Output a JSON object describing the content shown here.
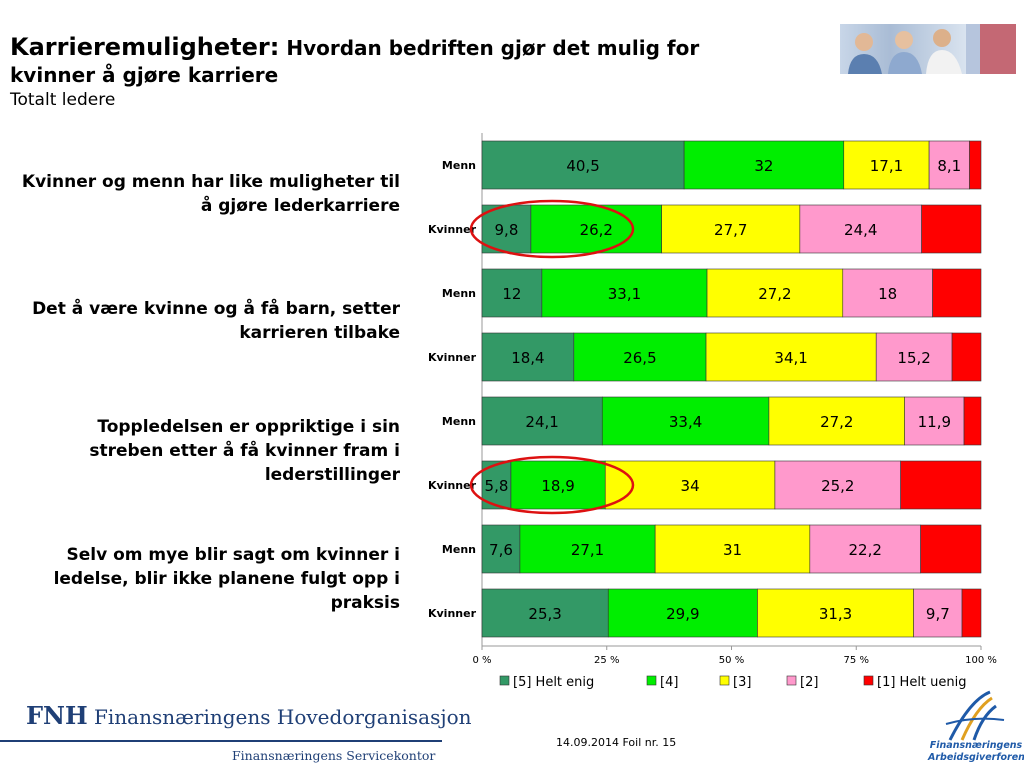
{
  "title": {
    "main": "Karrieremuligheter:",
    "rest": "Hvordan bedriften gjør det mulig for",
    "line2": "kvinner å gjøre karriere",
    "subtitle": "Totalt ledere"
  },
  "statements": [
    "Kvinner og menn har like muligheter til å gjøre lederkarriere",
    "Det å være kvinne og å få barn, setter karrieren tilbake",
    "Toppledelsen er oppriktige i sin streben etter å få kvinner fram i lederstillinger",
    "Selv om mye blir sagt om kvinner i ledelse, blir ikke planene fulgt opp i praksis"
  ],
  "chart_data": {
    "type": "bar",
    "orientation": "horizontal",
    "stacked": true,
    "categories": [
      "Menn",
      "Kvinner",
      "Menn",
      "Kvinner",
      "Menn",
      "Kvinner",
      "Menn",
      "Kvinner"
    ],
    "series": [
      {
        "name": "[5] Helt enig",
        "color": "#339966",
        "values": [
          40.5,
          9.8,
          12,
          18.4,
          24.1,
          5.8,
          7.6,
          25.3
        ],
        "labels": [
          "40,5",
          "9,8",
          "12",
          "18,4",
          "24,1",
          "5,8",
          "7,6",
          "25,3"
        ]
      },
      {
        "name": "[4]",
        "color": "#00ee00",
        "values": [
          32,
          26.2,
          33.1,
          26.5,
          33.4,
          18.9,
          27.1,
          29.9
        ],
        "labels": [
          "32",
          "26,2",
          "33,1",
          "26,5",
          "33,4",
          "18,9",
          "27,1",
          "29,9"
        ]
      },
      {
        "name": "[3]",
        "color": "#ffff00",
        "values": [
          17.1,
          27.7,
          27.2,
          34.1,
          27.2,
          34,
          31,
          31.3
        ],
        "labels": [
          "17,1",
          "27,7",
          "27,2",
          "34,1",
          "27,2",
          "34",
          "31",
          "31,3"
        ]
      },
      {
        "name": "[2]",
        "color": "#ff99cc",
        "values": [
          8.1,
          24.4,
          18,
          15.2,
          11.9,
          25.2,
          22.2,
          9.7
        ],
        "labels": [
          "8,1",
          "24,4",
          "18",
          "15,2",
          "11,9",
          "25,2",
          "22,2",
          "9,7"
        ]
      },
      {
        "name": "[1] Helt uenig",
        "color": "#ff0000",
        "values": [
          2.3,
          11.9,
          9.7,
          5.8,
          3.4,
          16.1,
          12.1,
          3.8
        ],
        "labels": [
          "",
          "",
          "",
          "",
          "",
          "",
          "",
          ""
        ]
      }
    ],
    "xlim": [
      0,
      100
    ],
    "xticks": [
      "0 %",
      "25 %",
      "50 %",
      "75 %",
      "100 %"
    ],
    "legend_position": "bottom",
    "highlight_circles": [
      1,
      5
    ],
    "highlight_color": "#dd1111"
  },
  "footer": {
    "org_abbr": "FNH",
    "org_name": "Finansnæringens Hovedorganisasjon",
    "org_sub": "Finansnæringens Servicekontor",
    "foil": "14.09.2014 Foil nr. 15",
    "corner_logo_line1": "Finansnæringens",
    "corner_logo_line2": "Arbeidsgiverforening"
  }
}
